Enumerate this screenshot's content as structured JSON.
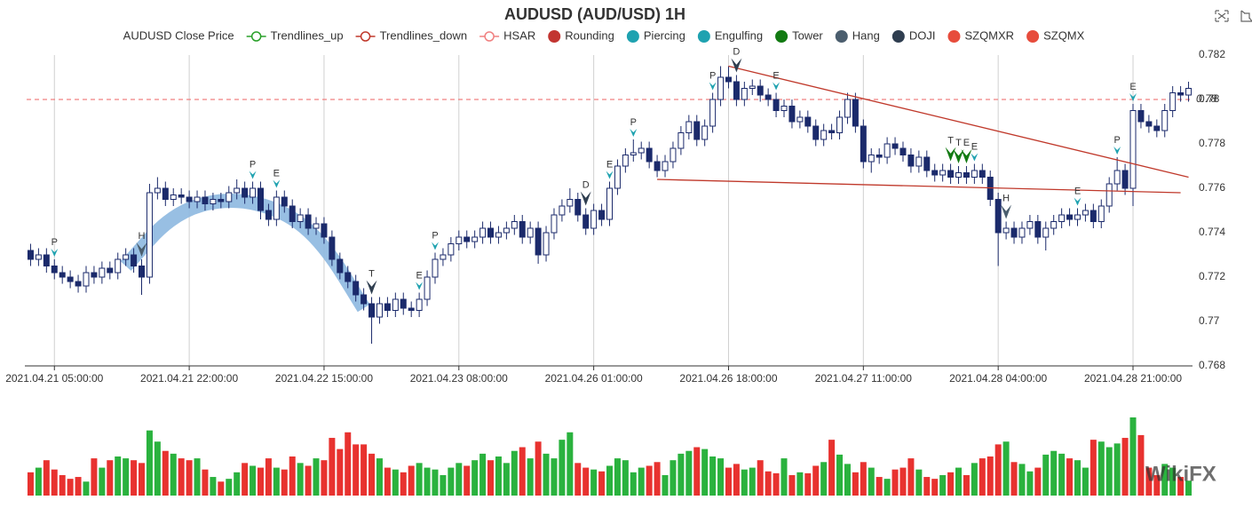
{
  "chart_data": {
    "type": "candlestick",
    "title": "AUDUSD (AUD/USD) 1H",
    "categories": [
      null,
      null,
      null,
      "2021.04.21 05:00:00",
      null,
      null,
      null,
      null,
      null,
      null,
      null,
      null,
      null,
      null,
      null,
      null,
      null,
      null,
      null,
      null,
      "2021.04.21 22:00:00",
      null,
      null,
      null,
      null,
      null,
      null,
      null,
      null,
      null,
      null,
      null,
      null,
      null,
      null,
      null,
      null,
      "2021.04.22 15:00:00",
      null,
      null,
      null,
      null,
      null,
      null,
      null,
      null,
      null,
      null,
      null,
      null,
      null,
      null,
      null,
      null,
      "2021.04.23 08:00:00",
      null,
      null,
      null,
      null,
      null,
      null,
      null,
      null,
      null,
      null,
      null,
      null,
      null,
      null,
      null,
      null,
      "2021.04.26 01:00:00",
      null,
      null,
      null,
      null,
      null,
      null,
      null,
      null,
      null,
      null,
      null,
      null,
      null,
      null,
      null,
      null,
      "2021.04.26 18:00:00",
      null,
      null,
      null,
      null,
      null,
      null,
      null,
      null,
      null,
      null,
      null,
      null,
      null,
      null,
      null,
      null,
      "2021.04.27 11:00:00",
      null,
      null,
      null,
      null,
      null,
      null,
      null,
      null,
      null,
      null,
      null,
      null,
      null,
      null,
      null,
      null,
      "2021.04.28 04:00:00",
      null,
      null,
      null,
      null,
      null,
      null,
      null,
      null,
      null,
      null,
      null,
      null,
      null,
      null,
      null,
      null,
      "2021.04.28 21:00:00",
      null,
      null,
      null,
      null,
      null,
      null,
      null
    ],
    "open": [
      0.7732,
      0.7728,
      0.773,
      0.7725,
      0.7722,
      0.772,
      0.7718,
      0.7716,
      0.7722,
      0.772,
      0.7724,
      0.7722,
      0.7728,
      0.773,
      0.7725,
      0.772,
      0.7758,
      0.776,
      0.7755,
      0.7757,
      0.7756,
      0.7754,
      0.7756,
      0.7753,
      0.7755,
      0.7754,
      0.7758,
      0.776,
      0.7756,
      0.776,
      0.775,
      0.7746,
      0.7756,
      0.7752,
      0.7745,
      0.7748,
      0.7742,
      0.7744,
      0.7738,
      0.7728,
      0.7722,
      0.7718,
      0.7712,
      0.7708,
      0.7702,
      0.7708,
      0.7705,
      0.771,
      0.7706,
      0.7705,
      0.771,
      0.772,
      0.7728,
      0.773,
      0.7735,
      0.7738,
      0.7736,
      0.7738,
      0.7742,
      0.7738,
      0.774,
      0.7742,
      0.7745,
      0.7738,
      0.7742,
      0.773,
      0.774,
      0.7748,
      0.7752,
      0.7755,
      0.7748,
      0.7742,
      0.775,
      0.7746,
      0.776,
      0.777,
      0.7775,
      0.7776,
      0.7778,
      0.7772,
      0.7768,
      0.7772,
      0.7778,
      0.7785,
      0.779,
      0.7782,
      0.7788,
      0.78,
      0.781,
      0.7808,
      0.78,
      0.7805,
      0.7806,
      0.7802,
      0.78,
      0.7795,
      0.7797,
      0.779,
      0.7792,
      0.7788,
      0.7782,
      0.7786,
      0.7785,
      0.7792,
      0.78,
      0.7788,
      0.7772,
      0.7775,
      0.7774,
      0.778,
      0.7778,
      0.7775,
      0.777,
      0.7774,
      0.7768,
      0.7766,
      0.7768,
      0.7765,
      0.7767,
      0.7765,
      0.7768,
      0.7765,
      0.7755,
      0.774,
      0.7742,
      0.7738,
      0.7742,
      0.7745,
      0.7738,
      0.7742,
      0.7745,
      0.7748,
      0.7746,
      0.7748,
      0.775,
      0.7745,
      0.7752,
      0.7762,
      0.7768,
      0.776,
      0.7795,
      0.779,
      0.7788,
      0.7786,
      0.7795,
      0.7803,
      0.7802
    ],
    "high": [
      0.7735,
      0.7733,
      0.7733,
      0.7728,
      0.7725,
      0.7723,
      0.7721,
      0.7725,
      0.7725,
      0.7727,
      0.7727,
      0.7731,
      0.7733,
      0.7733,
      0.7728,
      0.7762,
      0.7765,
      0.7763,
      0.776,
      0.776,
      0.7759,
      0.7759,
      0.7759,
      0.7758,
      0.7758,
      0.7761,
      0.7764,
      0.7763,
      0.7763,
      0.7763,
      0.7753,
      0.7759,
      0.7759,
      0.7755,
      0.7751,
      0.7751,
      0.7747,
      0.7747,
      0.7741,
      0.7731,
      0.7725,
      0.7721,
      0.7715,
      0.7711,
      0.7711,
      0.7711,
      0.7713,
      0.7713,
      0.7709,
      0.7713,
      0.7723,
      0.7731,
      0.7733,
      0.7738,
      0.7741,
      0.7741,
      0.7741,
      0.7745,
      0.7745,
      0.7743,
      0.7745,
      0.7748,
      0.7748,
      0.7745,
      0.7745,
      0.7743,
      0.7751,
      0.7755,
      0.776,
      0.7758,
      0.7751,
      0.7753,
      0.7753,
      0.7763,
      0.7773,
      0.7778,
      0.7782,
      0.7781,
      0.7781,
      0.7775,
      0.7775,
      0.7781,
      0.7788,
      0.7793,
      0.7793,
      0.7791,
      0.7803,
      0.7815,
      0.7815,
      0.7811,
      0.7808,
      0.7809,
      0.7809,
      0.7805,
      0.7803,
      0.78,
      0.78,
      0.7795,
      0.7795,
      0.7791,
      0.7789,
      0.7789,
      0.7795,
      0.7803,
      0.7803,
      0.7791,
      0.7778,
      0.7778,
      0.7783,
      0.7783,
      0.7781,
      0.7778,
      0.7777,
      0.7777,
      0.7771,
      0.7771,
      0.7771,
      0.777,
      0.777,
      0.7771,
      0.7771,
      0.7768,
      0.7758,
      0.7745,
      0.7745,
      0.7745,
      0.7748,
      0.7748,
      0.7745,
      0.7748,
      0.7751,
      0.7751,
      0.7751,
      0.7753,
      0.7753,
      0.7755,
      0.7765,
      0.7774,
      0.7771,
      0.7798,
      0.7798,
      0.7793,
      0.7791,
      0.7798,
      0.7806,
      0.7806,
      0.7808
    ],
    "low": [
      0.7725,
      0.7725,
      0.7722,
      0.7719,
      0.7717,
      0.7715,
      0.7713,
      0.7713,
      0.7717,
      0.7717,
      0.7719,
      0.7719,
      0.7725,
      0.7722,
      0.7712,
      0.7717,
      0.7755,
      0.7752,
      0.7752,
      0.7753,
      0.7751,
      0.7751,
      0.775,
      0.775,
      0.7751,
      0.7751,
      0.7755,
      0.7753,
      0.7753,
      0.7746,
      0.7743,
      0.7743,
      0.7749,
      0.7742,
      0.7742,
      0.7739,
      0.7739,
      0.7735,
      0.7725,
      0.7719,
      0.7715,
      0.7709,
      0.7705,
      0.769,
      0.7699,
      0.7702,
      0.7702,
      0.7703,
      0.7702,
      0.7702,
      0.7707,
      0.7717,
      0.7725,
      0.7727,
      0.7732,
      0.7733,
      0.7733,
      0.7735,
      0.7735,
      0.7735,
      0.7737,
      0.7739,
      0.7735,
      0.7735,
      0.7726,
      0.7727,
      0.7737,
      0.7745,
      0.7749,
      0.7745,
      0.7739,
      0.7739,
      0.7743,
      0.7743,
      0.7757,
      0.7767,
      0.7772,
      0.7773,
      0.7769,
      0.7765,
      0.7765,
      0.7769,
      0.7775,
      0.7782,
      0.7779,
      0.7779,
      0.7785,
      0.7797,
      0.7805,
      0.7797,
      0.7797,
      0.7802,
      0.7799,
      0.7797,
      0.7792,
      0.7792,
      0.7787,
      0.7787,
      0.7785,
      0.7779,
      0.7779,
      0.7782,
      0.7782,
      0.7789,
      0.7785,
      0.7769,
      0.7767,
      0.7771,
      0.7771,
      0.7775,
      0.7772,
      0.7767,
      0.7767,
      0.7765,
      0.7763,
      0.7763,
      0.7762,
      0.7762,
      0.7762,
      0.7762,
      0.7762,
      0.7752,
      0.7725,
      0.7737,
      0.7735,
      0.7735,
      0.7739,
      0.7735,
      0.7732,
      0.7739,
      0.7742,
      0.7743,
      0.7743,
      0.7745,
      0.7742,
      0.7742,
      0.7749,
      0.7759,
      0.7757,
      0.7752,
      0.7787,
      0.7785,
      0.7783,
      0.7783,
      0.7792,
      0.7799,
      0.7799
    ],
    "close": [
      0.7728,
      0.773,
      0.7725,
      0.7722,
      0.772,
      0.7718,
      0.7716,
      0.7722,
      0.772,
      0.7724,
      0.7722,
      0.7728,
      0.773,
      0.7725,
      0.772,
      0.7758,
      0.776,
      0.7755,
      0.7757,
      0.7756,
      0.7754,
      0.7756,
      0.7753,
      0.7755,
      0.7754,
      0.7758,
      0.776,
      0.7756,
      0.776,
      0.775,
      0.7746,
      0.7756,
      0.7752,
      0.7745,
      0.7748,
      0.7742,
      0.7744,
      0.7738,
      0.7728,
      0.7722,
      0.7718,
      0.7712,
      0.7708,
      0.7702,
      0.7708,
      0.7705,
      0.771,
      0.7706,
      0.7705,
      0.771,
      0.772,
      0.7728,
      0.773,
      0.7735,
      0.7738,
      0.7736,
      0.7738,
      0.7742,
      0.7738,
      0.774,
      0.7742,
      0.7745,
      0.7738,
      0.7742,
      0.773,
      0.774,
      0.7748,
      0.7752,
      0.7755,
      0.7748,
      0.7742,
      0.775,
      0.7746,
      0.776,
      0.777,
      0.7775,
      0.7776,
      0.7778,
      0.7772,
      0.7768,
      0.7772,
      0.7778,
      0.7785,
      0.779,
      0.7782,
      0.7788,
      0.78,
      0.781,
      0.7808,
      0.78,
      0.7805,
      0.7806,
      0.7802,
      0.78,
      0.7795,
      0.7797,
      0.779,
      0.7792,
      0.7788,
      0.7782,
      0.7786,
      0.7785,
      0.7792,
      0.78,
      0.7788,
      0.7772,
      0.7775,
      0.7774,
      0.778,
      0.7778,
      0.7775,
      0.777,
      0.7774,
      0.7768,
      0.7766,
      0.7768,
      0.7765,
      0.7767,
      0.7765,
      0.7768,
      0.7765,
      0.7755,
      0.774,
      0.7742,
      0.7738,
      0.7742,
      0.7745,
      0.7738,
      0.7742,
      0.7745,
      0.7748,
      0.7746,
      0.7748,
      0.775,
      0.7745,
      0.7752,
      0.7762,
      0.7768,
      0.776,
      0.7795,
      0.779,
      0.7788,
      0.7786,
      0.7795,
      0.7803,
      0.7802,
      0.7805
    ],
    "up_color": "#ffffff",
    "down_color": "#1b2a6b",
    "ylim": [
      0.768,
      0.782
    ],
    "yticks": [
      0.768,
      0.77,
      0.772,
      0.774,
      0.776,
      0.778,
      0.78,
      0.782
    ],
    "volume": {
      "values": [
        25,
        30,
        38,
        28,
        22,
        18,
        20,
        15,
        40,
        30,
        38,
        42,
        40,
        38,
        35,
        70,
        58,
        48,
        45,
        40,
        38,
        40,
        28,
        20,
        15,
        18,
        25,
        35,
        32,
        30,
        40,
        30,
        28,
        42,
        35,
        32,
        40,
        38,
        62,
        50,
        68,
        55,
        55,
        45,
        40,
        30,
        28,
        25,
        32,
        35,
        30,
        28,
        22,
        30,
        35,
        32,
        38,
        45,
        38,
        42,
        35,
        48,
        52,
        40,
        58,
        45,
        40,
        60,
        68,
        35,
        30,
        28,
        26,
        32,
        40,
        38,
        25,
        30,
        32,
        36,
        22,
        38,
        45,
        48,
        52,
        50,
        42,
        40,
        30,
        34,
        28,
        30,
        38,
        26,
        24,
        40,
        22,
        25,
        24,
        32,
        36,
        60,
        44,
        34,
        25,
        36,
        30,
        20,
        18,
        28,
        30,
        40,
        28,
        20,
        18,
        22,
        25,
        30,
        22,
        35,
        40,
        42,
        55,
        58,
        36,
        34,
        26,
        30,
        44,
        48,
        45,
        40,
        38,
        30,
        60,
        58,
        52,
        56,
        62,
        84,
        65,
        30,
        22,
        34,
        30,
        20,
        16
      ],
      "up_color": "#2ab23e",
      "down_color": "#e8322f"
    },
    "legend": [
      {
        "name": "AUDUSD Close Price",
        "color": "#333333",
        "icon": "none"
      },
      {
        "name": "Trendlines_up",
        "color": "#2aa02a",
        "icon": "line-circle"
      },
      {
        "name": "Trendlines_down",
        "color": "#c0392b",
        "icon": "line-circle"
      },
      {
        "name": "HSAR",
        "color": "#f08080",
        "icon": "line-circle"
      },
      {
        "name": "Rounding",
        "color": "#c23531",
        "icon": "circle"
      },
      {
        "name": "Piercing",
        "color": "#1fa2b0",
        "icon": "circle"
      },
      {
        "name": "Engulfing",
        "color": "#1fa2b0",
        "icon": "circle"
      },
      {
        "name": "Tower",
        "color": "#127a12",
        "icon": "circle"
      },
      {
        "name": "Hang",
        "color": "#4b5e6e",
        "icon": "circle"
      },
      {
        "name": "DOJI",
        "color": "#2f3e50",
        "icon": "circle"
      },
      {
        "name": "SZQMXR",
        "color": "#e74c3c",
        "icon": "circle"
      },
      {
        "name": "SZQMX",
        "color": "#e74c3c",
        "icon": "circle"
      }
    ],
    "signals": [
      {
        "at": 3,
        "label": "P",
        "legend": 5
      },
      {
        "at": 14,
        "label": "H",
        "legend": 8
      },
      {
        "at": 28,
        "label": "P",
        "legend": 5
      },
      {
        "at": 31,
        "label": "E",
        "legend": 6
      },
      {
        "at": 43,
        "label": "T",
        "legend": 9
      },
      {
        "at": 49,
        "label": "E",
        "legend": 6
      },
      {
        "at": 51,
        "label": "P",
        "legend": 5
      },
      {
        "at": 70,
        "label": "D",
        "legend": 9
      },
      {
        "at": 73,
        "label": "E",
        "legend": 6
      },
      {
        "at": 76,
        "label": "P",
        "legend": 5
      },
      {
        "at": 86,
        "label": "P",
        "legend": 5
      },
      {
        "at": 89,
        "label": "D",
        "legend": 9
      },
      {
        "at": 94,
        "label": "E",
        "legend": 6
      },
      {
        "at": 116,
        "label": "T",
        "legend": 7
      },
      {
        "at": 117,
        "label": "T",
        "legend": 7
      },
      {
        "at": 118,
        "label": "E",
        "legend": 7
      },
      {
        "at": 119,
        "label": "E",
        "legend": 6
      },
      {
        "at": 123,
        "label": "H",
        "legend": 8
      },
      {
        "at": 132,
        "label": "E",
        "legend": 6
      },
      {
        "at": 137,
        "label": "P",
        "legend": 5
      },
      {
        "at": 139,
        "label": "E",
        "legend": 6
      }
    ],
    "trendlines": [
      {
        "x": [
          88,
          146
        ],
        "y": [
          0.7815,
          0.7765
        ]
      },
      {
        "x": [
          79,
          145
        ],
        "y": [
          0.7764,
          0.7758
        ]
      }
    ],
    "hsar": {
      "value": 0.78
    },
    "rounding": {
      "x": [
        12,
        18,
        25,
        32,
        37,
        42
      ],
      "y": [
        0.7725,
        0.7749,
        0.7756,
        0.775,
        0.7735,
        0.7706
      ]
    },
    "watermark": "WikiFX"
  }
}
